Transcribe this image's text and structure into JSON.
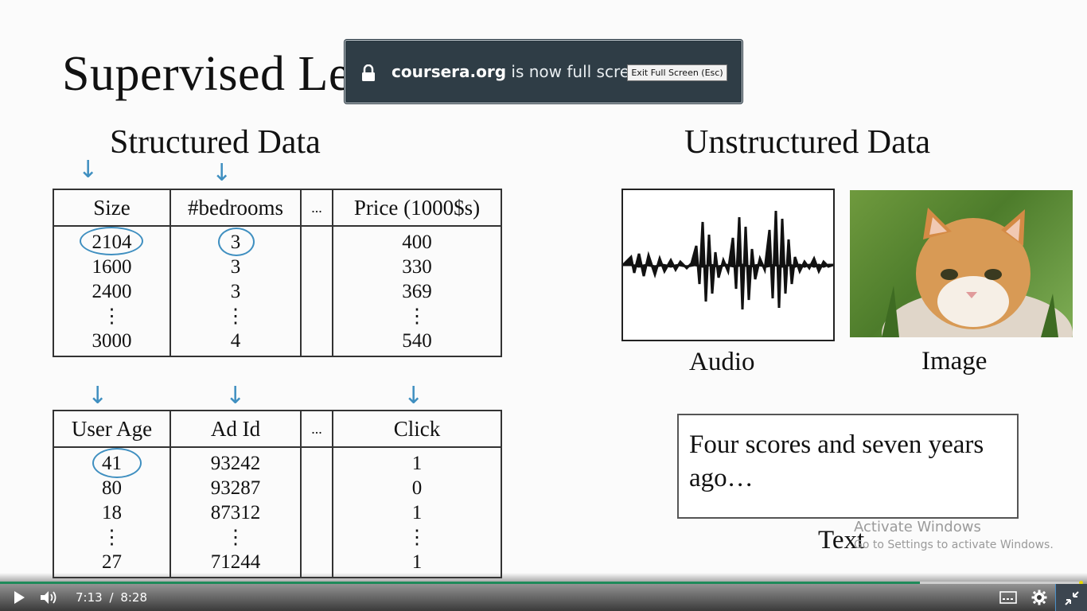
{
  "slide": {
    "title": "Supervised Learning",
    "structured_heading": "Structured Data",
    "unstructured_heading": "Unstructured Data",
    "table_housing": {
      "headers": [
        "Size",
        "#bedrooms",
        "...",
        "Price (1000$s)"
      ],
      "rows": [
        [
          "2104",
          "3",
          "",
          "400"
        ],
        [
          "1600",
          "3",
          "",
          "330"
        ],
        [
          "2400",
          "3",
          "",
          "369"
        ],
        [
          "⋮",
          "⋮",
          "",
          "⋮"
        ],
        [
          "3000",
          "4",
          "",
          "540"
        ]
      ]
    },
    "table_ads": {
      "headers": [
        "User Age",
        "Ad Id",
        "...",
        "Click"
      ],
      "rows": [
        [
          "41",
          "93242",
          "",
          "1"
        ],
        [
          "80",
          "93287",
          "",
          "0"
        ],
        [
          "18",
          "87312",
          "",
          "1"
        ],
        [
          "⋮",
          "⋮",
          "",
          "⋮"
        ],
        [
          "27",
          "71244",
          "",
          "1"
        ]
      ]
    },
    "audio_caption": "Audio",
    "image_caption": "Image",
    "text_box": "Four scores and seven years ago…",
    "text_caption": "Text"
  },
  "watermark": {
    "line1": "Activate Windows",
    "line2": "Go to Settings to activate Windows."
  },
  "fullscreen_notice": {
    "domain": "coursera.org",
    "message": "is now full screen",
    "exit_button": "Exit Full Screen (Esc)",
    "icon": "lock-icon"
  },
  "player": {
    "current_time": "7:13",
    "separator": "/",
    "duration": "8:28",
    "progress_fraction": 0.851,
    "accent_color": "#1f8a5a",
    "icons": [
      "play-icon",
      "volume-icon",
      "captions-icon",
      "settings-icon",
      "exit-fullscreen-icon"
    ]
  }
}
